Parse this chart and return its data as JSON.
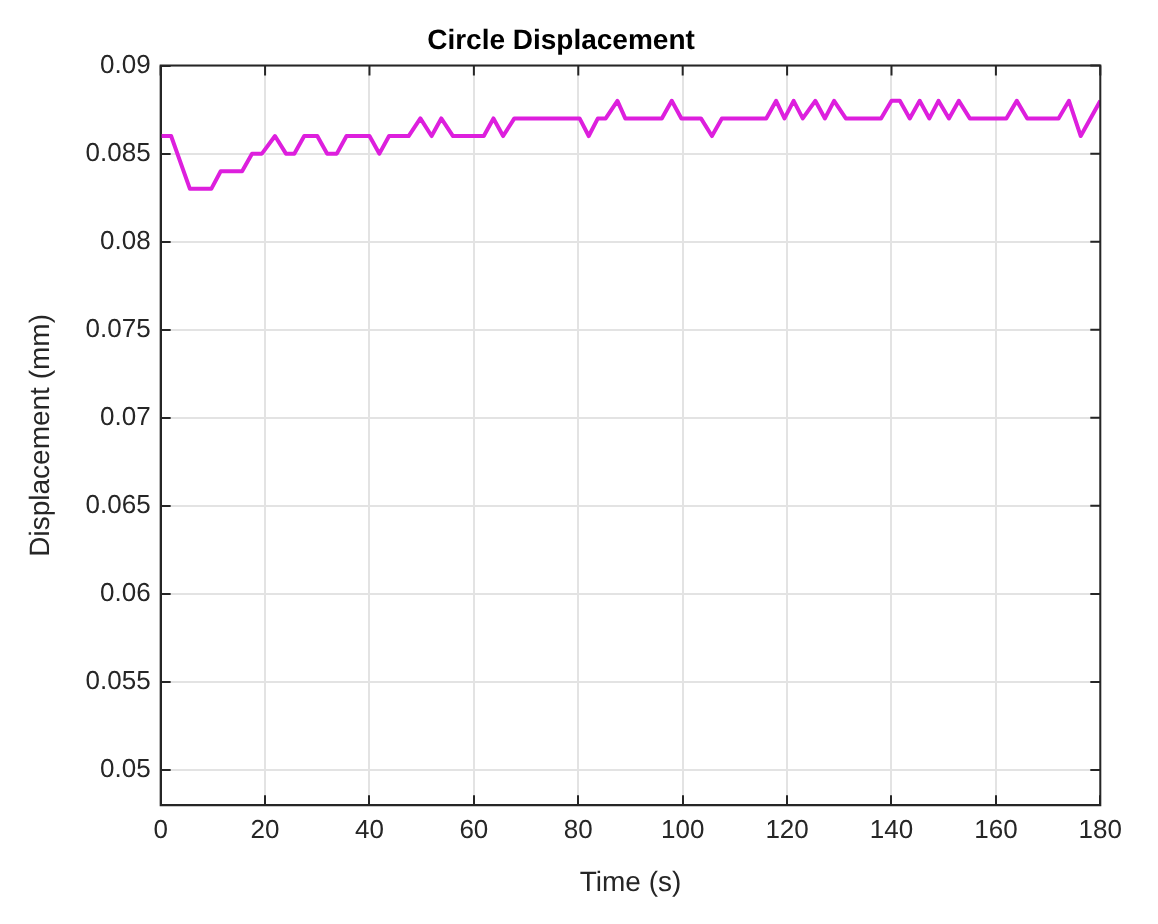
{
  "chart_data": {
    "type": "line",
    "title": "Circle Displacement",
    "xlabel": "Time (s)",
    "ylabel": "Displacement (mm)",
    "xlim": [
      0,
      180
    ],
    "xticks": [
      0,
      20,
      40,
      60,
      80,
      100,
      120,
      140,
      160,
      180
    ],
    "ylim": [
      0.048,
      0.09
    ],
    "yticks": [
      0.05,
      0.055,
      0.06,
      0.065,
      0.07,
      0.075,
      0.08,
      0.085,
      0.09
    ],
    "grid": true,
    "legend": false,
    "marker": "none",
    "line_style": "solid",
    "series": [
      {
        "color": "#dd1fdd",
        "x": [
          0,
          2,
          5.6,
          9.7,
          11.5,
          15.6,
          17.5,
          19.4,
          21.9,
          24,
          25.6,
          27.5,
          30,
          31.9,
          33.75,
          35.6,
          40,
          41.9,
          43.75,
          47.5,
          49.75,
          51.9,
          53.75,
          56,
          61.9,
          63.75,
          65.6,
          67.75,
          80.25,
          82,
          83.75,
          85.25,
          87.5,
          89,
          96,
          97.9,
          99.75,
          103.5,
          105.6,
          107.5,
          116,
          117.9,
          119.5,
          121.25,
          123,
          125.4,
          127.25,
          129,
          131.25,
          138,
          140,
          141.6,
          143.5,
          145.4,
          147.25,
          149,
          151,
          152.9,
          155,
          162,
          164,
          166,
          172,
          174,
          176.25,
          180
        ],
        "values": [
          0.086,
          0.086,
          0.083,
          0.083,
          0.084,
          0.084,
          0.085,
          0.085,
          0.086,
          0.085,
          0.085,
          0.086,
          0.086,
          0.085,
          0.085,
          0.086,
          0.086,
          0.085,
          0.086,
          0.086,
          0.087,
          0.086,
          0.087,
          0.086,
          0.086,
          0.087,
          0.086,
          0.087,
          0.087,
          0.086,
          0.087,
          0.087,
          0.088,
          0.087,
          0.087,
          0.088,
          0.087,
          0.087,
          0.086,
          0.087,
          0.087,
          0.088,
          0.087,
          0.088,
          0.087,
          0.088,
          0.087,
          0.088,
          0.087,
          0.087,
          0.088,
          0.088,
          0.087,
          0.088,
          0.087,
          0.088,
          0.087,
          0.088,
          0.087,
          0.087,
          0.088,
          0.087,
          0.087,
          0.088,
          0.086,
          0.088
        ]
      }
    ]
  }
}
